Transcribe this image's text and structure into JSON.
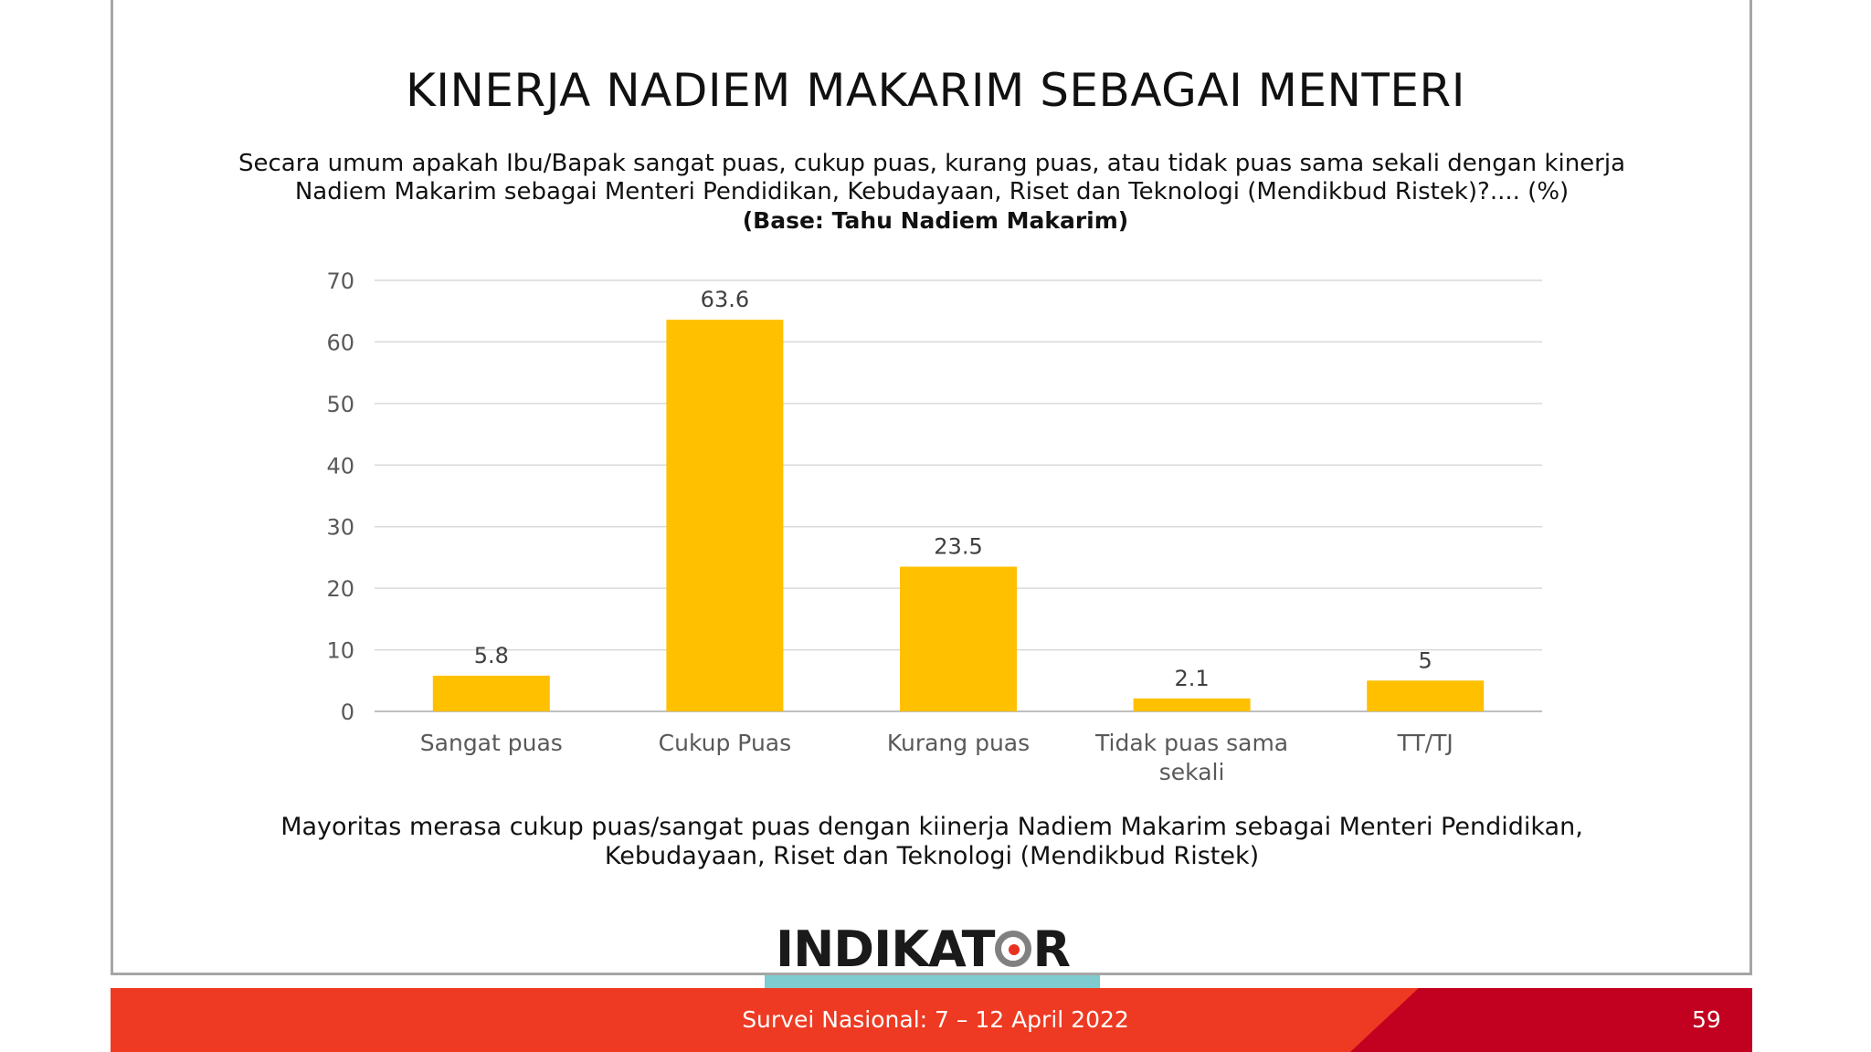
{
  "title": "KINERJA NADIEM MAKARIM SEBAGAI MENTERI",
  "question": "Secara umum apakah Ibu/Bapak sangat puas, cukup puas, kurang puas, atau tidak puas sama sekali dengan kinerja Nadiem Makarim sebagai Menteri Pendidikan, Kebudayaan, Riset dan Teknologi (Mendikbud Ristek)?.... (%)",
  "base": "(Base: Tahu Nadiem Makarim)",
  "conclusion": "Mayoritas merasa cukup puas/sangat puas dengan kiinerja Nadiem Makarim sebagai Menteri Pendidikan, Kebudayaan, Riset dan Teknologi (Mendikbud Ristek)",
  "logo_text": "INDIKATOR",
  "footer_text": "Survei Nasional: 7 – 12 April 2022",
  "page_number": "59",
  "colors": {
    "bar": "#ffc000",
    "footer": "#ee3a22",
    "footer_dark": "#c2001f",
    "accent": "#7ecbd0"
  },
  "chart_data": {
    "type": "bar",
    "categories": [
      "Sangat puas",
      "Cukup Puas",
      "Kurang puas",
      "Tidak puas sama sekali",
      "TT/TJ"
    ],
    "values": [
      5.8,
      63.6,
      23.5,
      2.1,
      5
    ],
    "value_labels": [
      "5.8",
      "63.6",
      "23.5",
      "2.1",
      "5"
    ],
    "ylim": [
      0,
      70
    ],
    "yticks": [
      "0",
      "10",
      "20",
      "30",
      "40",
      "50",
      "60",
      "70"
    ],
    "grid": true,
    "legend": "none"
  }
}
